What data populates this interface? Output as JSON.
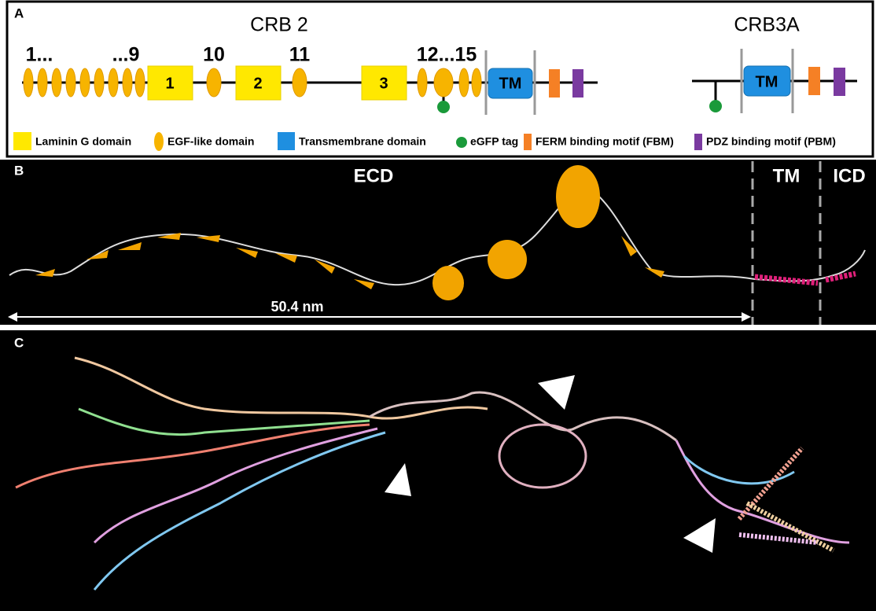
{
  "panel_a": {
    "label": "A",
    "crb2": {
      "title": "CRB 2",
      "numbers": [
        "1...",
        "...9",
        "10",
        "11",
        "12...15"
      ],
      "laminin": [
        "1",
        "2",
        "3"
      ],
      "tm": "TM"
    },
    "crb3a": {
      "title": "CRB3A",
      "tm": "TM"
    },
    "legend": [
      "Laminin G domain",
      "EGF-like domain",
      "Transmembrane domain",
      "eGFP tag",
      "FERM binding motif (FBM)",
      "PDZ binding motif (PBM)"
    ]
  },
  "panel_b": {
    "label": "B",
    "regions": [
      "ECD",
      "TM",
      "ICD"
    ],
    "scale": "50.4 nm"
  },
  "panel_c": {
    "label": "C"
  }
}
